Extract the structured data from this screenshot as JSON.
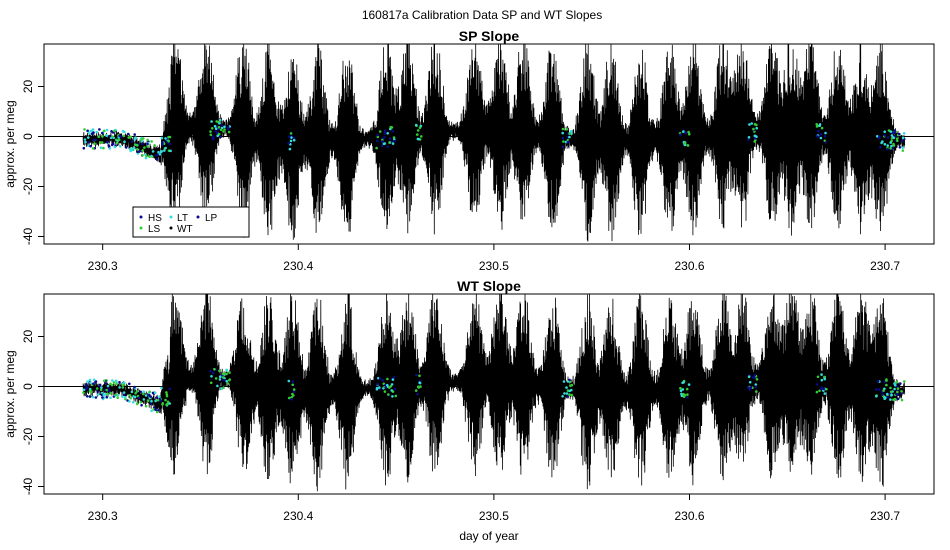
{
  "figure": {
    "suptitle": "160817a   Calibration Data SP and WT Slopes",
    "xlabel": "day of year"
  },
  "colors": {
    "HS": "#0a0a8c",
    "LS": "#33cc33",
    "LT": "#33dddd",
    "WT": "#000000",
    "LP": "#0a0a8c",
    "frame": "#000000"
  },
  "legend": {
    "position": "bottom-left",
    "entries": [
      {
        "key": "HS",
        "label": "HS"
      },
      {
        "key": "LS",
        "label": "LS"
      },
      {
        "key": "LT",
        "label": "LT"
      },
      {
        "key": "WT",
        "label": "WT"
      },
      {
        "key": "LP",
        "label": "LP"
      }
    ]
  },
  "chart_data": [
    {
      "type": "line",
      "title": "SP Slope",
      "ylabel": "approx. per meg",
      "xlim": [
        230.27,
        230.725
      ],
      "ylim": [
        -43,
        37
      ],
      "xticks": [
        230.3,
        230.4,
        230.5,
        230.6,
        230.7
      ],
      "yticks": [
        -40,
        -20,
        0,
        20
      ],
      "hline": 0,
      "series_names": [
        "HS",
        "LS",
        "LT",
        "WT",
        "LP"
      ],
      "x_range": [
        230.29,
        230.71
      ],
      "calibration_segments": [
        [
          230.29,
          230.335
        ],
        [
          230.355,
          230.365
        ],
        [
          230.395,
          230.398
        ],
        [
          230.44,
          230.45
        ],
        [
          230.46,
          230.463
        ],
        [
          230.535,
          230.54
        ],
        [
          230.595,
          230.6
        ],
        [
          230.63,
          230.635
        ],
        [
          230.665,
          230.67
        ],
        [
          230.695,
          230.71
        ]
      ]
    },
    {
      "type": "line",
      "title": "WT Slope",
      "ylabel": "approx. per meg",
      "xlim": [
        230.27,
        230.725
      ],
      "ylim": [
        -43,
        37
      ],
      "xticks": [
        230.3,
        230.4,
        230.5,
        230.6,
        230.7
      ],
      "yticks": [
        -40,
        -20,
        0,
        20
      ],
      "hline": 0,
      "series_names": [
        "HS",
        "LS",
        "LT",
        "WT",
        "LP"
      ],
      "x_range": [
        230.29,
        230.71
      ],
      "calibration_segments": [
        [
          230.29,
          230.335
        ],
        [
          230.355,
          230.365
        ],
        [
          230.395,
          230.398
        ],
        [
          230.44,
          230.45
        ],
        [
          230.46,
          230.463
        ],
        [
          230.535,
          230.54
        ],
        [
          230.595,
          230.6
        ],
        [
          230.63,
          230.635
        ],
        [
          230.665,
          230.67
        ],
        [
          230.695,
          230.71
        ]
      ]
    }
  ]
}
